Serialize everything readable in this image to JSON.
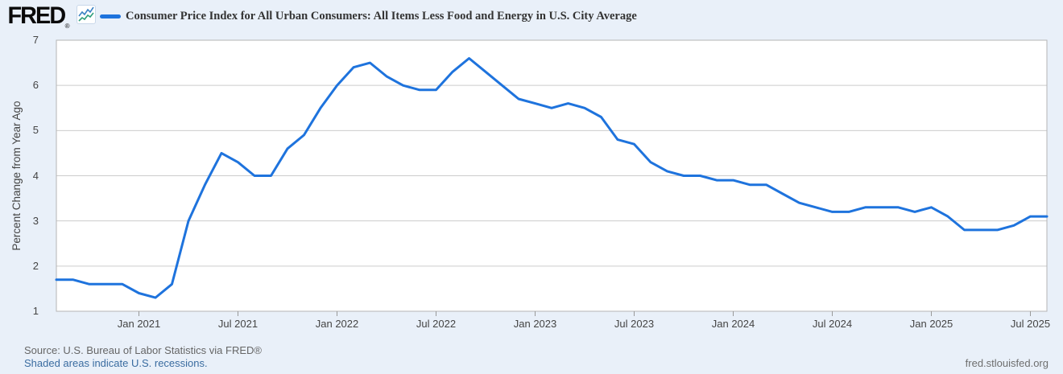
{
  "header": {
    "logo_text": "FRED",
    "logo_registered": "®"
  },
  "footer": {
    "source_line": "Source: U.S. Bureau of Labor Statistics via FRED®",
    "recession_note": "Shaded areas indicate U.S. recessions.",
    "site_link": "fred.stlouisfed.org"
  },
  "colors": {
    "line": "#1e73dd",
    "background": "#e9f0f9",
    "plot_bg": "#ffffff",
    "grid": "#cccccc",
    "border": "#b5b5b5",
    "tick": "#999999",
    "axis_text": "#444444",
    "title_text": "#333333",
    "link": "#3a6ca0",
    "source_text": "#666666",
    "logo_icon_blue": "#3b82c4",
    "logo_icon_green": "#2e9e7b"
  },
  "chart_data": {
    "type": "line",
    "title": "Consumer Price Index for All Urban Consumers: All Items Less Food and Energy in U.S. City Average",
    "ylabel": "Percent Change from Year Ago",
    "ylim": [
      1,
      7
    ],
    "yticks": [
      1,
      2,
      3,
      4,
      5,
      6,
      7
    ],
    "grid": "horizontal",
    "legend_position": "top-left",
    "x_tick_labels": [
      "Jan 2021",
      "Jul 2021",
      "Jan 2022",
      "Jul 2022",
      "Jan 2023",
      "Jul 2023",
      "Jan 2024",
      "Jul 2024",
      "Jan 2025",
      "Jul 2025"
    ],
    "months": [
      "Aug 2020",
      "Sep 2020",
      "Oct 2020",
      "Nov 2020",
      "Dec 2020",
      "Jan 2021",
      "Feb 2021",
      "Mar 2021",
      "Apr 2021",
      "May 2021",
      "Jun 2021",
      "Jul 2021",
      "Aug 2021",
      "Sep 2021",
      "Oct 2021",
      "Nov 2021",
      "Dec 2021",
      "Jan 2022",
      "Feb 2022",
      "Mar 2022",
      "Apr 2022",
      "May 2022",
      "Jun 2022",
      "Jul 2022",
      "Aug 2022",
      "Sep 2022",
      "Oct 2022",
      "Nov 2022",
      "Dec 2022",
      "Jan 2023",
      "Feb 2023",
      "Mar 2023",
      "Apr 2023",
      "May 2023",
      "Jun 2023",
      "Jul 2023",
      "Aug 2023",
      "Sep 2023",
      "Oct 2023",
      "Nov 2023",
      "Dec 2023",
      "Jan 2024",
      "Feb 2024",
      "Mar 2024",
      "Apr 2024",
      "May 2024",
      "Jun 2024",
      "Jul 2024",
      "Aug 2024",
      "Sep 2024",
      "Oct 2024",
      "Nov 2024",
      "Dec 2024",
      "Jan 2025",
      "Feb 2025",
      "Mar 2025",
      "Apr 2025",
      "May 2025",
      "Jun 2025",
      "Jul 2025",
      "Aug 2025"
    ],
    "values": [
      1.7,
      1.7,
      1.6,
      1.6,
      1.6,
      1.4,
      1.3,
      1.6,
      3.0,
      3.8,
      4.5,
      4.3,
      4.0,
      4.0,
      4.6,
      4.9,
      5.5,
      6.0,
      6.4,
      6.5,
      6.2,
      6.0,
      5.9,
      5.9,
      6.3,
      6.6,
      6.3,
      6.0,
      5.7,
      5.6,
      5.5,
      5.6,
      5.5,
      5.3,
      4.8,
      4.7,
      4.3,
      4.1,
      4.0,
      4.0,
      3.9,
      3.9,
      3.8,
      3.8,
      3.6,
      3.4,
      3.3,
      3.2,
      3.2,
      3.3,
      3.3,
      3.3,
      3.2,
      3.3,
      3.1,
      2.8,
      2.8,
      2.8,
      2.9,
      3.1,
      3.1
    ]
  }
}
